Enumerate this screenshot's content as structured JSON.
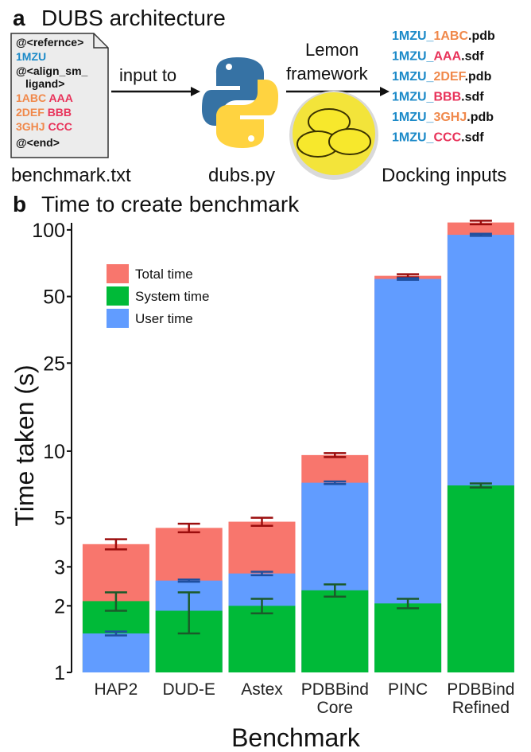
{
  "panel_a": {
    "label": "a",
    "title": "DUBS architecture",
    "file_lines": [
      [
        "@<refernce>"
      ],
      [
        "1MZU"
      ],
      [
        "@<align_sm_"
      ],
      [
        "ligand>"
      ],
      [
        "1ABC",
        "AAA"
      ],
      [
        "2DEF",
        "BBB"
      ],
      [
        "3GHJ",
        "CCC"
      ],
      [
        "@<end>"
      ]
    ],
    "file_name": "benchmark.txt",
    "arrow1_label": "input to",
    "script_name": "dubs.py",
    "arrow2_label": [
      "Lemon",
      "framework"
    ],
    "outputs": [
      [
        "1MZU_",
        "1ABC",
        ".pdb"
      ],
      [
        "1MZU_",
        "AAA",
        ".sdf"
      ],
      [
        "1MZU_",
        "2DEF",
        ".pdb"
      ],
      [
        "1MZU_",
        "BBB",
        ".sdf"
      ],
      [
        "1MZU_",
        "3GHJ",
        ".pdb"
      ],
      [
        "1MZU_",
        "CCC",
        ".sdf"
      ]
    ],
    "outputs_label": "Docking inputs"
  },
  "chart_data": {
    "type": "bar",
    "panel_label": "b",
    "title": "Time to create benchmark",
    "x_label": "Benchmark",
    "y_label": "Time taken (s)",
    "categories": [
      "HAP2",
      "DUD-E",
      "Astex",
      "PDBBind Core",
      "PINC",
      "PDBBind Refined"
    ],
    "series": [
      {
        "name": "Total time",
        "color": "#F8766D",
        "error_color": "#9b0d0d",
        "values": [
          3.8,
          4.5,
          4.8,
          9.6,
          62,
          108
        ],
        "error": [
          0.2,
          0.2,
          0.2,
          0.2,
          1,
          2
        ]
      },
      {
        "name": "System time",
        "color": "#00BA38",
        "error_color": "#1b5a2a",
        "values": [
          2.1,
          1.9,
          2.0,
          2.35,
          2.05,
          7.0
        ],
        "error": [
          0.2,
          0.4,
          0.15,
          0.15,
          0.1,
          0.15
        ]
      },
      {
        "name": "User time",
        "color": "#619CFF",
        "error_color": "#1f4f9f",
        "values": [
          1.5,
          2.6,
          2.8,
          7.2,
          60,
          95
        ],
        "error": [
          0.03,
          0.03,
          0.05,
          0.1,
          0.5,
          1
        ]
      }
    ],
    "overlap": true,
    "log_y": true,
    "ylim": [
      1,
      115
    ],
    "yticks": [
      1,
      2,
      3,
      5,
      10,
      25,
      50,
      100
    ],
    "legend": "upper left",
    "grid": false
  }
}
